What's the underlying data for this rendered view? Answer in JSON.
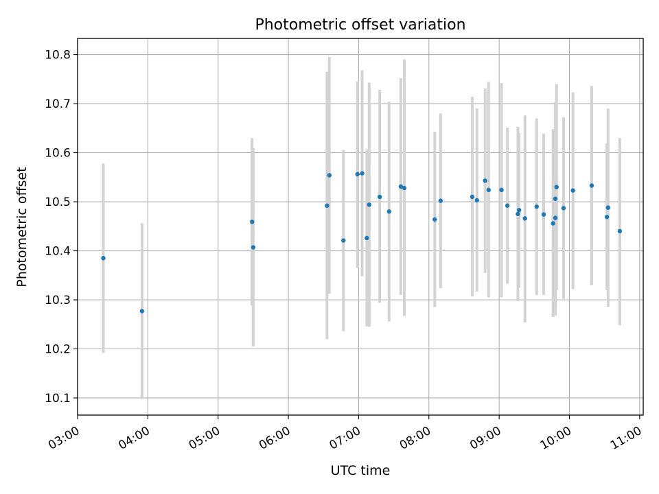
{
  "chart_data": {
    "type": "scatter",
    "title": "Photometric offset variation",
    "xlabel": "UTC time",
    "ylabel": "Photometric offset",
    "x_ticks": [
      "03:00",
      "04:00",
      "05:00",
      "06:00",
      "07:00",
      "08:00",
      "09:00",
      "10:00",
      "11:00"
    ],
    "y_ticks": [
      "10.1",
      "10.2",
      "10.3",
      "10.4",
      "10.5",
      "10.6",
      "10.7",
      "10.8"
    ],
    "xlim": [
      "03:00",
      "11:03"
    ],
    "ylim": [
      10.065,
      10.833
    ],
    "grid": true,
    "marker_color": "#1f77b4",
    "errorbar_color": "#d3d3d3",
    "points": [
      {
        "x": "03:22",
        "y": 10.385,
        "ymin": 10.192,
        "ymax": 10.578
      },
      {
        "x": "03:55",
        "y": 10.277,
        "ymin": 10.098,
        "ymax": 10.456
      },
      {
        "x": "05:29",
        "y": 10.459,
        "ymin": 10.288,
        "ymax": 10.63
      },
      {
        "x": "05:30",
        "y": 10.407,
        "ymin": 10.205,
        "ymax": 10.609
      },
      {
        "x": "06:33",
        "y": 10.492,
        "ymin": 10.22,
        "ymax": 10.765
      },
      {
        "x": "06:35",
        "y": 10.554,
        "ymin": 10.313,
        "ymax": 10.795
      },
      {
        "x": "06:47",
        "y": 10.421,
        "ymin": 10.236,
        "ymax": 10.605
      },
      {
        "x": "06:59",
        "y": 10.556,
        "ymin": 10.365,
        "ymax": 10.745
      },
      {
        "x": "07:03",
        "y": 10.558,
        "ymin": 10.348,
        "ymax": 10.768
      },
      {
        "x": "07:07",
        "y": 10.426,
        "ymin": 10.246,
        "ymax": 10.607
      },
      {
        "x": "07:09",
        "y": 10.494,
        "ymin": 10.245,
        "ymax": 10.743
      },
      {
        "x": "07:18",
        "y": 10.51,
        "ymin": 10.294,
        "ymax": 10.728
      },
      {
        "x": "07:26",
        "y": 10.48,
        "ymin": 10.256,
        "ymax": 10.704
      },
      {
        "x": "07:36",
        "y": 10.531,
        "ymin": 10.31,
        "ymax": 10.752
      },
      {
        "x": "07:39",
        "y": 10.528,
        "ymin": 10.267,
        "ymax": 10.79
      },
      {
        "x": "08:05",
        "y": 10.464,
        "ymin": 10.285,
        "ymax": 10.643
      },
      {
        "x": "08:10",
        "y": 10.502,
        "ymin": 10.324,
        "ymax": 10.68
      },
      {
        "x": "08:37",
        "y": 10.51,
        "ymin": 10.307,
        "ymax": 10.714
      },
      {
        "x": "08:41",
        "y": 10.503,
        "ymin": 10.317,
        "ymax": 10.69
      },
      {
        "x": "08:48",
        "y": 10.543,
        "ymin": 10.355,
        "ymax": 10.731
      },
      {
        "x": "08:51",
        "y": 10.524,
        "ymin": 10.305,
        "ymax": 10.744
      },
      {
        "x": "09:02",
        "y": 10.524,
        "ymin": 10.305,
        "ymax": 10.742
      },
      {
        "x": "09:07",
        "y": 10.492,
        "ymin": 10.333,
        "ymax": 10.651
      },
      {
        "x": "09:16",
        "y": 10.475,
        "ymin": 10.297,
        "ymax": 10.653
      },
      {
        "x": "09:17",
        "y": 10.483,
        "ymin": 10.325,
        "ymax": 10.64
      },
      {
        "x": "09:22",
        "y": 10.466,
        "ymin": 10.254,
        "ymax": 10.676
      },
      {
        "x": "09:32",
        "y": 10.49,
        "ymin": 10.31,
        "ymax": 10.67
      },
      {
        "x": "09:38",
        "y": 10.474,
        "ymin": 10.31,
        "ymax": 10.639
      },
      {
        "x": "09:46",
        "y": 10.456,
        "ymin": 10.265,
        "ymax": 10.648
      },
      {
        "x": "09:48",
        "y": 10.506,
        "ymin": 10.268,
        "ymax": 10.703
      },
      {
        "x": "09:48",
        "y": 10.467,
        "ymin": 10.282,
        "ymax": 10.652
      },
      {
        "x": "09:49",
        "y": 10.53,
        "ymin": 10.32,
        "ymax": 10.74
      },
      {
        "x": "09:55",
        "y": 10.487,
        "ymin": 10.302,
        "ymax": 10.672
      },
      {
        "x": "10:03",
        "y": 10.523,
        "ymin": 10.322,
        "ymax": 10.723
      },
      {
        "x": "10:19",
        "y": 10.533,
        "ymin": 10.33,
        "ymax": 10.736
      },
      {
        "x": "10:32",
        "y": 10.469,
        "ymin": 10.32,
        "ymax": 10.619
      },
      {
        "x": "10:33",
        "y": 10.488,
        "ymin": 10.286,
        "ymax": 10.69
      },
      {
        "x": "10:43",
        "y": 10.44,
        "ymin": 10.248,
        "ymax": 10.63
      }
    ]
  }
}
